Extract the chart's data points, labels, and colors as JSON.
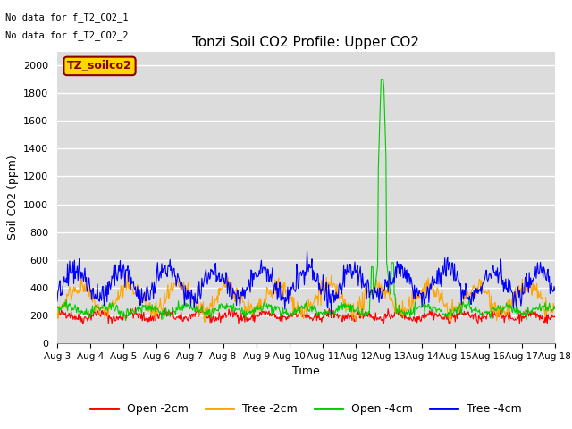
{
  "title": "Tonzi Soil CO2 Profile: Upper CO2",
  "ylabel": "Soil CO2 (ppm)",
  "xlabel": "Time",
  "no_data_text_1": "No data for f_T2_CO2_1",
  "no_data_text_2": "No data for f_T2_CO2_2",
  "legend_label": "TZ_soilco2",
  "legend_label_color": "#8B0000",
  "legend_label_bg": "#FFD700",
  "background_color": "#DCDCDC",
  "ylim": [
    0,
    2100
  ],
  "yticks": [
    0,
    200,
    400,
    600,
    800,
    1000,
    1200,
    1400,
    1600,
    1800,
    2000
  ],
  "series": [
    {
      "label": "Open -2cm",
      "color": "#FF0000"
    },
    {
      "label": "Tree -2cm",
      "color": "#FFA500"
    },
    {
      "label": "Open -4cm",
      "color": "#00CC00"
    },
    {
      "label": "Tree -4cm",
      "color": "#0000FF"
    }
  ],
  "n_points": 720,
  "start_day": 3,
  "end_day": 18,
  "seed": 42,
  "figsize": [
    6.4,
    4.8
  ],
  "dpi": 100
}
